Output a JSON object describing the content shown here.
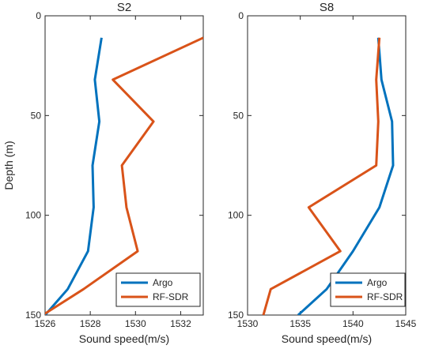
{
  "chart_data": [
    {
      "type": "line",
      "title": "S2",
      "xlabel": "Sound speed(m/s)",
      "ylabel": "Depth (m)",
      "xlim": [
        1526,
        1533
      ],
      "ylim": [
        0,
        150
      ],
      "y_reversed": true,
      "xticks": [
        1526,
        1528,
        1530,
        1532
      ],
      "yticks": [
        0,
        50,
        100,
        150
      ],
      "grid": false,
      "legend_position": "bottom-right",
      "series": [
        {
          "name": "Argo",
          "color": "#0072BD",
          "points": [
            [
              1528.5,
              11
            ],
            [
              1528.2,
              32
            ],
            [
              1528.4,
              53
            ],
            [
              1528.1,
              75
            ],
            [
              1528.15,
              96
            ],
            [
              1527.9,
              118
            ],
            [
              1527.0,
              137
            ],
            [
              1526.0,
              150
            ]
          ]
        },
        {
          "name": "RF-SDR",
          "color": "#D95319",
          "points": [
            [
              1533.0,
              11
            ],
            [
              1529.0,
              32
            ],
            [
              1530.8,
              53
            ],
            [
              1529.4,
              75
            ],
            [
              1529.6,
              96
            ],
            [
              1530.1,
              118
            ],
            [
              1527.7,
              137
            ],
            [
              1525.9,
              150
            ]
          ]
        }
      ]
    },
    {
      "type": "line",
      "title": "S8",
      "xlabel": "Sound speed(m/s)",
      "ylabel": "",
      "xlim": [
        1530,
        1545
      ],
      "ylim": [
        0,
        150
      ],
      "y_reversed": true,
      "xticks": [
        1530,
        1535,
        1540,
        1545
      ],
      "yticks": [
        0,
        50,
        100,
        150
      ],
      "grid": false,
      "legend_position": "bottom-right",
      "series": [
        {
          "name": "Argo",
          "color": "#0072BD",
          "points": [
            [
              1542.4,
              11
            ],
            [
              1542.7,
              32
            ],
            [
              1543.7,
              53
            ],
            [
              1543.8,
              75
            ],
            [
              1542.5,
              96
            ],
            [
              1540.0,
              118
            ],
            [
              1537.5,
              137
            ],
            [
              1534.8,
              150
            ]
          ]
        },
        {
          "name": "RF-SDR",
          "color": "#D95319",
          "points": [
            [
              1542.5,
              11
            ],
            [
              1542.2,
              32
            ],
            [
              1542.4,
              53
            ],
            [
              1542.2,
              75
            ],
            [
              1535.8,
              96
            ],
            [
              1538.8,
              118
            ],
            [
              1532.2,
              137
            ],
            [
              1531.5,
              150
            ]
          ]
        }
      ]
    }
  ]
}
